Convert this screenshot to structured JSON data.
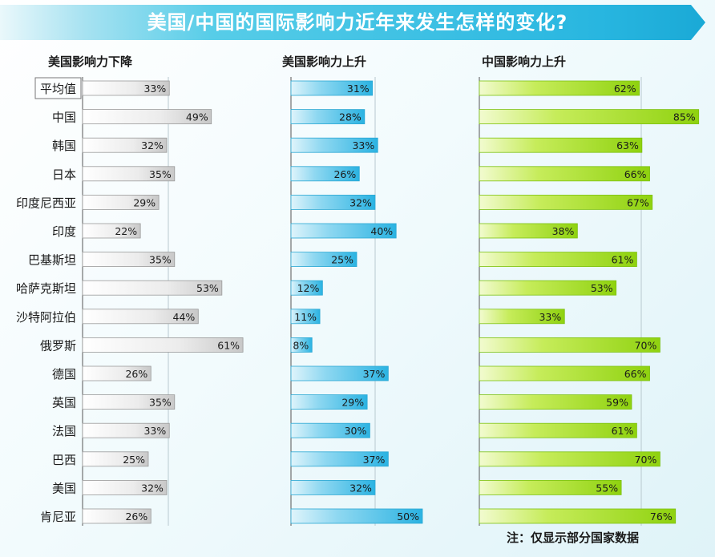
{
  "title": "美国/中国的国际影响力近年来发生怎样的变化?",
  "note": "注：仅显示部分国家数据",
  "colors": {
    "grey": "#d4d4d4",
    "blue": "#3fbde6",
    "green": "#a6dd1a",
    "banner": "#57cde8"
  },
  "chart_data": {
    "type": "bar",
    "categories": [
      "平均值",
      "中国",
      "韩国",
      "日本",
      "印度尼西亚",
      "印度",
      "巴基斯坦",
      "哈萨克斯坦",
      "沙特阿拉伯",
      "俄罗斯",
      "德国",
      "英国",
      "法国",
      "巴西",
      "美国",
      "肯尼亚"
    ],
    "series": [
      {
        "name": "美国影响力下降",
        "values": [
          33,
          49,
          32,
          35,
          29,
          22,
          35,
          53,
          44,
          61,
          26,
          35,
          33,
          25,
          32,
          26
        ]
      },
      {
        "name": "美国影响力上升",
        "values": [
          31,
          28,
          33,
          26,
          32,
          40,
          25,
          12,
          11,
          8,
          37,
          29,
          30,
          37,
          32,
          50
        ]
      },
      {
        "name": "中国影响力上升",
        "values": [
          62,
          85,
          63,
          66,
          67,
          38,
          61,
          53,
          33,
          70,
          66,
          59,
          61,
          70,
          55,
          76
        ]
      }
    ],
    "value_suffix": "%"
  }
}
